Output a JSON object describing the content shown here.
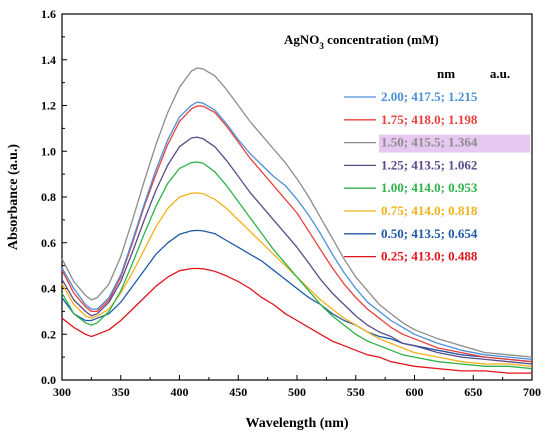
{
  "chart_data": {
    "type": "line",
    "xlabel": "Wavelength (nm)",
    "ylabel": "Absorbance (a.u.)",
    "xlim": [
      300,
      700
    ],
    "ylim": [
      0.0,
      1.6
    ],
    "xticks": [
      "300",
      "350",
      "400",
      "450",
      "500",
      "550",
      "600",
      "650",
      "700"
    ],
    "yticks": [
      "0.0",
      "0.2",
      "0.4",
      "0.6",
      "0.8",
      "1.0",
      "1.2",
      "1.4",
      "1.6"
    ],
    "legend_title": {
      "prefix": "AgNO",
      "subscript": "3",
      "suffix": " concentration (mM)"
    },
    "legend_units": {
      "nm": "nm",
      "au": "a.u."
    },
    "legend_placement": "top-right",
    "grid": false,
    "x": [
      300,
      310,
      320,
      325,
      330,
      340,
      350,
      360,
      370,
      380,
      390,
      400,
      410,
      415,
      420,
      430,
      440,
      450,
      460,
      470,
      480,
      490,
      500,
      510,
      520,
      530,
      540,
      550,
      560,
      570,
      580,
      590,
      600,
      620,
      640,
      660,
      680,
      700
    ],
    "series": [
      {
        "name": "2.00; 417.5; 1.215",
        "color": "#4a90d9",
        "highlight": false,
        "values": [
          0.49,
          0.4,
          0.33,
          0.31,
          0.31,
          0.36,
          0.46,
          0.61,
          0.77,
          0.92,
          1.05,
          1.15,
          1.2,
          1.215,
          1.21,
          1.18,
          1.12,
          1.05,
          0.99,
          0.94,
          0.89,
          0.85,
          0.79,
          0.72,
          0.64,
          0.55,
          0.47,
          0.4,
          0.34,
          0.3,
          0.26,
          0.23,
          0.2,
          0.16,
          0.13,
          0.11,
          0.1,
          0.09
        ]
      },
      {
        "name": "1.75; 418.0; 1.198",
        "color": "#e8413c",
        "highlight": false,
        "values": [
          0.48,
          0.38,
          0.32,
          0.3,
          0.3,
          0.35,
          0.45,
          0.6,
          0.76,
          0.9,
          1.03,
          1.13,
          1.185,
          1.198,
          1.197,
          1.17,
          1.11,
          1.04,
          0.97,
          0.91,
          0.85,
          0.79,
          0.73,
          0.65,
          0.57,
          0.49,
          0.42,
          0.36,
          0.31,
          0.27,
          0.23,
          0.2,
          0.18,
          0.14,
          0.12,
          0.1,
          0.09,
          0.08
        ]
      },
      {
        "name": "1.50; 415.5; 1.364",
        "color": "#8c8c8c",
        "highlight": true,
        "values": [
          0.53,
          0.43,
          0.37,
          0.35,
          0.36,
          0.42,
          0.54,
          0.7,
          0.87,
          1.03,
          1.17,
          1.28,
          1.35,
          1.364,
          1.36,
          1.33,
          1.27,
          1.2,
          1.13,
          1.07,
          1.01,
          0.95,
          0.88,
          0.8,
          0.71,
          0.62,
          0.53,
          0.45,
          0.39,
          0.33,
          0.29,
          0.25,
          0.22,
          0.18,
          0.15,
          0.12,
          0.11,
          0.1
        ]
      },
      {
        "name": "1.25; 413.5; 1.062",
        "color": "#5a4a8a",
        "highlight": false,
        "values": [
          0.44,
          0.35,
          0.3,
          0.28,
          0.29,
          0.34,
          0.43,
          0.56,
          0.7,
          0.83,
          0.94,
          1.02,
          1.058,
          1.062,
          1.055,
          1.02,
          0.96,
          0.89,
          0.82,
          0.76,
          0.7,
          0.64,
          0.58,
          0.51,
          0.44,
          0.38,
          0.33,
          0.28,
          0.24,
          0.21,
          0.19,
          0.16,
          0.15,
          0.12,
          0.1,
          0.09,
          0.08,
          0.07
        ]
      },
      {
        "name": "1.00; 414.0; 0.953",
        "color": "#2db34a",
        "highlight": false,
        "values": [
          0.38,
          0.29,
          0.25,
          0.24,
          0.25,
          0.3,
          0.39,
          0.51,
          0.64,
          0.76,
          0.86,
          0.925,
          0.95,
          0.953,
          0.948,
          0.91,
          0.85,
          0.78,
          0.71,
          0.64,
          0.57,
          0.51,
          0.45,
          0.39,
          0.33,
          0.28,
          0.24,
          0.2,
          0.17,
          0.15,
          0.13,
          0.11,
          0.1,
          0.08,
          0.07,
          0.06,
          0.06,
          0.05
        ]
      },
      {
        "name": "0.75; 414.0; 0.818",
        "color": "#f2b21b",
        "highlight": false,
        "values": [
          0.42,
          0.33,
          0.28,
          0.27,
          0.28,
          0.31,
          0.38,
          0.47,
          0.57,
          0.67,
          0.75,
          0.8,
          0.816,
          0.818,
          0.815,
          0.79,
          0.75,
          0.7,
          0.65,
          0.6,
          0.55,
          0.5,
          0.45,
          0.4,
          0.35,
          0.31,
          0.27,
          0.24,
          0.21,
          0.18,
          0.16,
          0.14,
          0.12,
          0.1,
          0.08,
          0.07,
          0.07,
          0.06
        ]
      },
      {
        "name": "0.50; 413.5; 0.654",
        "color": "#1f5aa6",
        "highlight": false,
        "values": [
          0.36,
          0.29,
          0.26,
          0.26,
          0.27,
          0.29,
          0.34,
          0.41,
          0.48,
          0.55,
          0.6,
          0.637,
          0.652,
          0.654,
          0.652,
          0.64,
          0.61,
          0.58,
          0.55,
          0.52,
          0.48,
          0.44,
          0.4,
          0.36,
          0.33,
          0.29,
          0.26,
          0.24,
          0.21,
          0.19,
          0.18,
          0.16,
          0.15,
          0.13,
          0.11,
          0.1,
          0.09,
          0.08
        ]
      },
      {
        "name": "0.25; 413.0; 0.488",
        "color": "#e0141c",
        "highlight": false,
        "values": [
          0.27,
          0.23,
          0.2,
          0.19,
          0.2,
          0.22,
          0.26,
          0.31,
          0.36,
          0.41,
          0.45,
          0.478,
          0.487,
          0.488,
          0.486,
          0.475,
          0.455,
          0.43,
          0.4,
          0.36,
          0.33,
          0.29,
          0.26,
          0.23,
          0.2,
          0.17,
          0.15,
          0.13,
          0.11,
          0.1,
          0.08,
          0.07,
          0.06,
          0.05,
          0.04,
          0.04,
          0.03,
          0.03
        ]
      }
    ]
  },
  "colors": {
    "highlight_box": "#e6c8f0",
    "axis": "#000000"
  }
}
